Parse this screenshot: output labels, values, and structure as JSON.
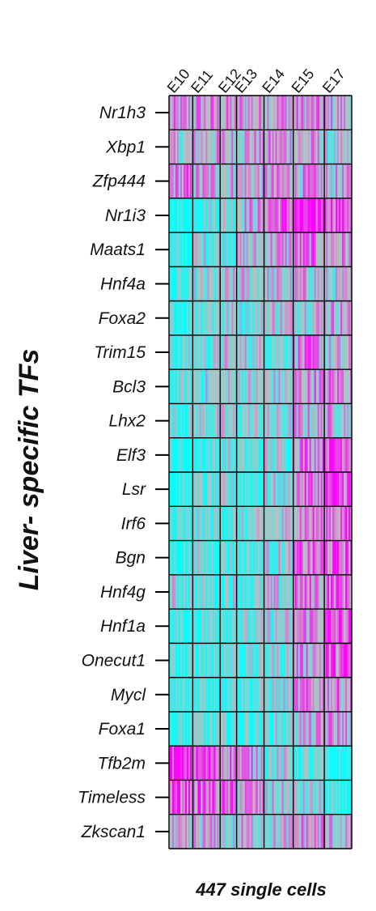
{
  "chart_data": {
    "type": "heatmap",
    "title": "",
    "ylabel": "Liver- specific TFs",
    "xlabel": "447 single cells",
    "columns": [
      "E10",
      "E11",
      "E12",
      "E13",
      "E14",
      "E15",
      "E17"
    ],
    "column_cell_shares": [
      0.13,
      0.15,
      0.09,
      0.15,
      0.16,
      0.17,
      0.15
    ],
    "rows": [
      "Nr1h3",
      "Xbp1",
      "Zfp444",
      "Nr1i3",
      "Maats1",
      "Hnf4a",
      "Foxa2",
      "Trim15",
      "Bcl3",
      "Lhx2",
      "Elf3",
      "Lsr",
      "Irf6",
      "Bgn",
      "Hnf4g",
      "Hnf1a",
      "Onecut1",
      "Mycl",
      "Foxa1",
      "Tfb2m",
      "Timeless",
      "Zkscan1"
    ],
    "color_scale": {
      "low": "#00FFFF",
      "mid": "#BEBEBE",
      "high": "#FF00FF"
    },
    "grid": true,
    "legend": "none",
    "mean_expression": [
      [
        0.1,
        0.2,
        0.15,
        0.2,
        0.25,
        0.2,
        0.1
      ],
      [
        -0.15,
        0.1,
        0.05,
        0.15,
        0.2,
        0.05,
        -0.3
      ],
      [
        0.25,
        0.1,
        0.05,
        0.1,
        0.15,
        0.1,
        0.0
      ],
      [
        -0.9,
        -0.4,
        -0.3,
        0.1,
        0.5,
        0.75,
        0.7
      ],
      [
        -0.85,
        -0.25,
        -0.3,
        -0.1,
        0.15,
        0.3,
        0.2
      ],
      [
        -0.85,
        -0.35,
        -0.2,
        -0.1,
        -0.1,
        0.0,
        -0.2
      ],
      [
        -0.65,
        -0.25,
        -0.25,
        -0.3,
        -0.05,
        0.05,
        0.15
      ],
      [
        -0.5,
        -0.35,
        -0.2,
        -0.2,
        -0.25,
        0.25,
        -0.15
      ],
      [
        -0.55,
        -0.25,
        -0.25,
        -0.25,
        -0.2,
        0.25,
        0.3
      ],
      [
        -0.45,
        -0.25,
        -0.3,
        -0.3,
        -0.3,
        0.05,
        0.05
      ],
      [
        -0.9,
        -0.6,
        -0.4,
        -0.55,
        -0.3,
        0.4,
        0.75
      ],
      [
        -0.9,
        -0.55,
        -0.45,
        -0.55,
        -0.3,
        0.35,
        0.6
      ],
      [
        -0.75,
        -0.5,
        -0.35,
        -0.45,
        -0.2,
        0.35,
        0.45
      ],
      [
        -0.65,
        -0.45,
        -0.45,
        -0.55,
        -0.25,
        0.35,
        0.5
      ],
      [
        -0.3,
        -0.5,
        -0.3,
        -0.45,
        -0.2,
        0.3,
        0.5
      ],
      [
        -0.8,
        -0.5,
        -0.35,
        -0.45,
        -0.25,
        0.3,
        0.5
      ],
      [
        -0.75,
        -0.5,
        -0.4,
        -0.5,
        -0.3,
        0.2,
        0.5
      ],
      [
        -0.7,
        -0.45,
        -0.35,
        -0.5,
        -0.3,
        0.2,
        0.3
      ],
      [
        -0.8,
        -0.6,
        -0.55,
        -0.55,
        -0.4,
        0.0,
        0.15
      ],
      [
        0.85,
        0.55,
        0.4,
        0.2,
        -0.3,
        -0.6,
        -0.95
      ],
      [
        0.65,
        0.45,
        0.3,
        0.2,
        -0.15,
        -0.3,
        -0.85
      ],
      [
        -0.2,
        0.0,
        -0.2,
        0.0,
        -0.1,
        0.2,
        0.0
      ]
    ]
  }
}
